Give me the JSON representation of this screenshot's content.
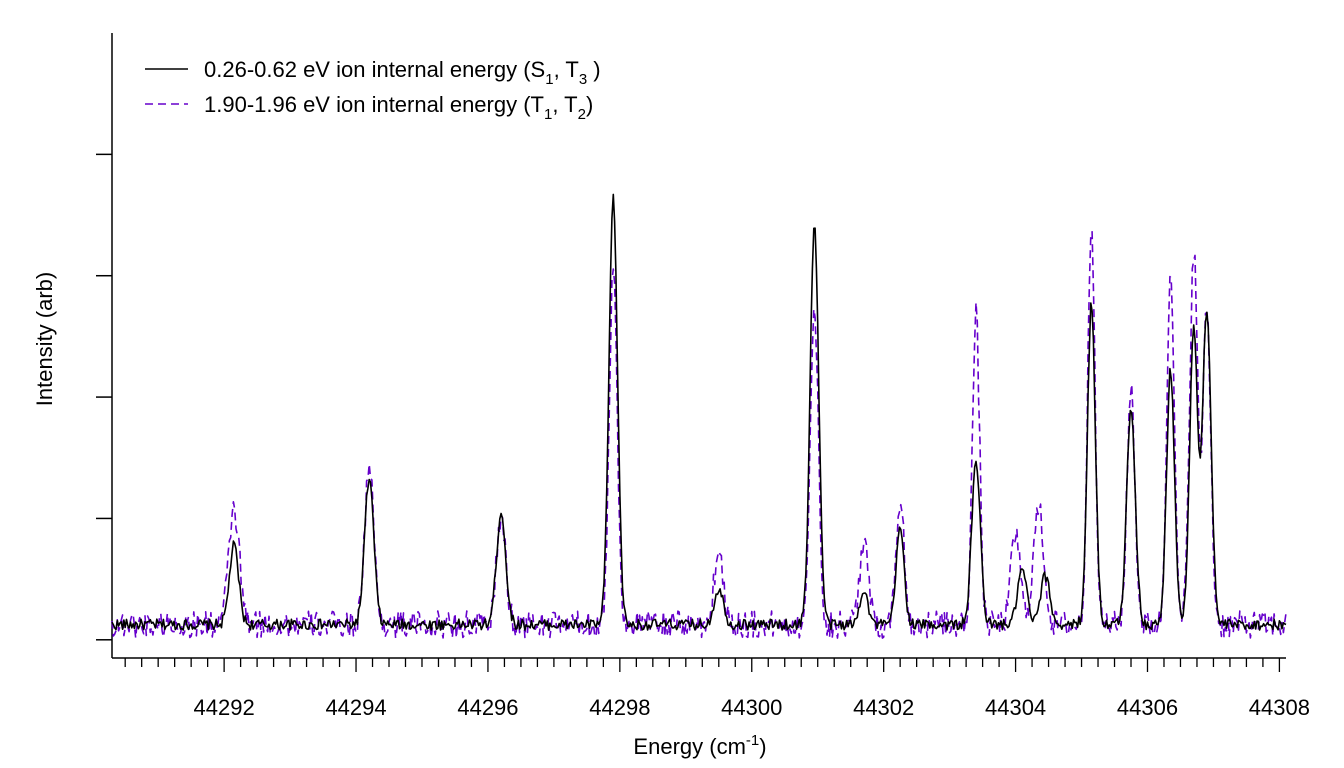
{
  "chart_data": {
    "type": "line",
    "title": "",
    "xlabel": "Energy (cm",
    "xlabel_sup": "-1",
    "xlabel_close": ")",
    "ylabel": "Intensity (arb)",
    "xlim": [
      44290.3,
      44308.1
    ],
    "ylim": [
      -0.03,
      1.0
    ],
    "x_ticks": [
      44292,
      44294,
      44296,
      44298,
      44300,
      44302,
      44304,
      44306,
      44308
    ],
    "x_tick_labels": [
      "44292",
      "44294",
      "44296",
      "44298",
      "44300",
      "44302",
      "44304",
      "44306",
      "44308"
    ],
    "y_ticks": [
      0.0,
      0.2,
      0.4,
      0.6,
      0.8
    ],
    "grid": false,
    "legend_position": "top-left",
    "legend": [
      {
        "text": "0.26-0.62 eV ion internal energy (S",
        "sub1": "1",
        "mid": ", T",
        "sub2": "3",
        "tail": " )"
      },
      {
        "text": "1.90-1.96 eV ion internal energy (T",
        "sub1": "1",
        "mid": ", T",
        "sub2": "2",
        "tail": ")"
      }
    ],
    "baseline": 0.025,
    "series": [
      {
        "color": "#000000",
        "dash": "none",
        "peaks": [
          {
            "x": 44292.15,
            "h": 0.13,
            "w": 0.07
          },
          {
            "x": 44294.2,
            "h": 0.24,
            "w": 0.07
          },
          {
            "x": 44296.2,
            "h": 0.185,
            "w": 0.07
          },
          {
            "x": 44297.9,
            "h": 0.7,
            "w": 0.065
          },
          {
            "x": 44299.5,
            "h": 0.06,
            "w": 0.07
          },
          {
            "x": 44300.95,
            "h": 0.66,
            "w": 0.065
          },
          {
            "x": 44301.7,
            "h": 0.06,
            "w": 0.06
          },
          {
            "x": 44302.25,
            "h": 0.16,
            "w": 0.06
          },
          {
            "x": 44303.4,
            "h": 0.27,
            "w": 0.065
          },
          {
            "x": 44304.1,
            "h": 0.09,
            "w": 0.07
          },
          {
            "x": 44304.45,
            "h": 0.08,
            "w": 0.07
          },
          {
            "x": 44305.15,
            "h": 0.53,
            "w": 0.06
          },
          {
            "x": 44305.75,
            "h": 0.36,
            "w": 0.065
          },
          {
            "x": 44306.35,
            "h": 0.42,
            "w": 0.06
          },
          {
            "x": 44306.7,
            "h": 0.49,
            "w": 0.06
          },
          {
            "x": 44306.9,
            "h": 0.52,
            "w": 0.065
          }
        ]
      },
      {
        "color": "#6600cc",
        "dash": "8,5",
        "peaks": [
          {
            "x": 44292.15,
            "h": 0.19,
            "w": 0.08
          },
          {
            "x": 44294.2,
            "h": 0.26,
            "w": 0.07
          },
          {
            "x": 44296.2,
            "h": 0.175,
            "w": 0.07
          },
          {
            "x": 44297.9,
            "h": 0.59,
            "w": 0.06
          },
          {
            "x": 44299.5,
            "h": 0.12,
            "w": 0.07
          },
          {
            "x": 44300.95,
            "h": 0.53,
            "w": 0.06
          },
          {
            "x": 44301.7,
            "h": 0.13,
            "w": 0.07
          },
          {
            "x": 44302.25,
            "h": 0.21,
            "w": 0.06
          },
          {
            "x": 44303.4,
            "h": 0.51,
            "w": 0.055
          },
          {
            "x": 44304.0,
            "h": 0.15,
            "w": 0.07
          },
          {
            "x": 44304.35,
            "h": 0.19,
            "w": 0.08
          },
          {
            "x": 44305.15,
            "h": 0.67,
            "w": 0.055
          },
          {
            "x": 44305.75,
            "h": 0.39,
            "w": 0.06
          },
          {
            "x": 44306.35,
            "h": 0.6,
            "w": 0.055
          },
          {
            "x": 44306.7,
            "h": 0.62,
            "w": 0.06
          },
          {
            "x": 44306.9,
            "h": 0.52,
            "w": 0.06
          }
        ]
      }
    ]
  }
}
